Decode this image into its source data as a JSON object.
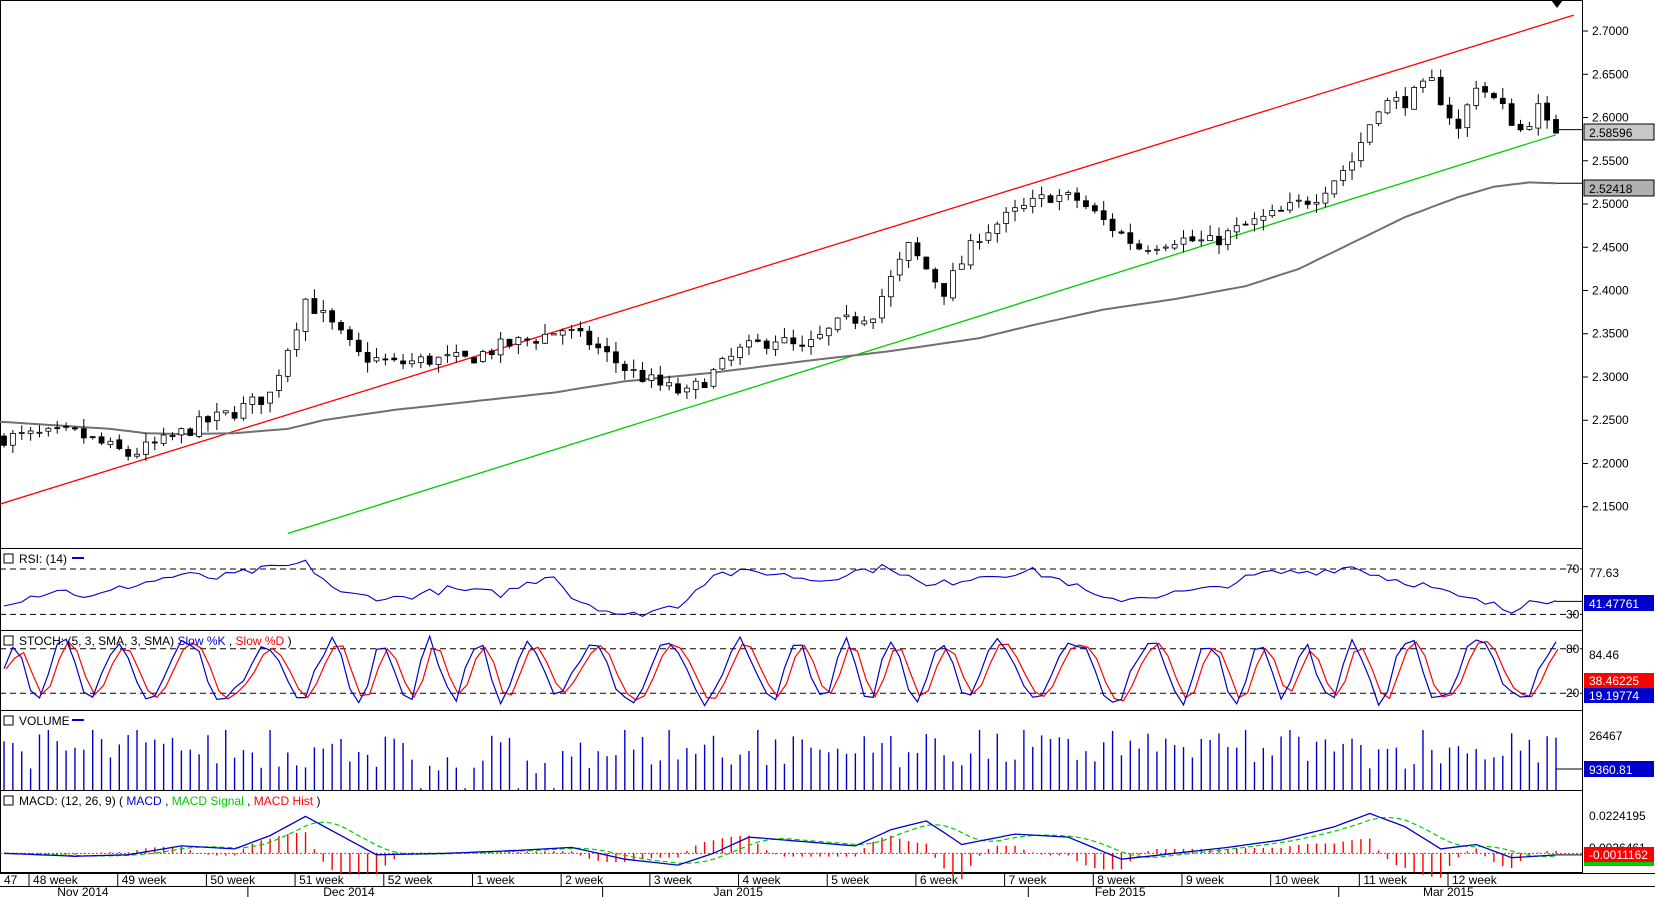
{
  "chart_data": {
    "type": "candlestick",
    "instrument_price_axis": {
      "ticks": [
        "2.7000",
        "2.6500",
        "2.6000",
        "2.5500",
        "2.5000",
        "2.4500",
        "2.4000",
        "2.3500",
        "2.3000",
        "2.2500",
        "2.2000",
        "2.1500"
      ],
      "ylim": [
        2.115,
        2.722
      ]
    },
    "price_tags": {
      "last_close": "2.58596",
      "moving_average": "2.52418"
    },
    "lines": {
      "upper_channel": {
        "color": "#ff0000",
        "from": [
          0,
          2.154
        ],
        "to": [
          175,
          2.712
        ]
      },
      "lower_channel": {
        "color": "#00cc00",
        "from": [
          32,
          2.119
        ],
        "to": [
          175,
          2.58
        ]
      },
      "moving_average": {
        "color": "#808080"
      }
    },
    "price_keypoints": [
      [
        0,
        2.23
      ],
      [
        8,
        2.235
      ],
      [
        14,
        2.21
      ],
      [
        18,
        2.225
      ],
      [
        22,
        2.245
      ],
      [
        26,
        2.26
      ],
      [
        30,
        2.28
      ],
      [
        34,
        2.39
      ],
      [
        36,
        2.37
      ],
      [
        40,
        2.325
      ],
      [
        44,
        2.315
      ],
      [
        48,
        2.32
      ],
      [
        52,
        2.32
      ],
      [
        56,
        2.335
      ],
      [
        60,
        2.345
      ],
      [
        63,
        2.355
      ],
      [
        66,
        2.34
      ],
      [
        70,
        2.31
      ],
      [
        74,
        2.29
      ],
      [
        77,
        2.28
      ],
      [
        80,
        2.305
      ],
      [
        83,
        2.33
      ],
      [
        87,
        2.345
      ],
      [
        90,
        2.33
      ],
      [
        94,
        2.36
      ],
      [
        98,
        2.375
      ],
      [
        102,
        2.45
      ],
      [
        106,
        2.4
      ],
      [
        110,
        2.465
      ],
      [
        114,
        2.49
      ],
      [
        118,
        2.51
      ],
      [
        121,
        2.505
      ],
      [
        124,
        2.48
      ],
      [
        128,
        2.45
      ],
      [
        132,
        2.46
      ],
      [
        136,
        2.455
      ],
      [
        140,
        2.475
      ],
      [
        144,
        2.49
      ],
      [
        148,
        2.51
      ],
      [
        152,
        2.55
      ],
      [
        155,
        2.615
      ],
      [
        158,
        2.62
      ],
      [
        161,
        2.64
      ],
      [
        164,
        2.585
      ],
      [
        166,
        2.64
      ],
      [
        169,
        2.61
      ],
      [
        171,
        2.585
      ],
      [
        173,
        2.61
      ],
      [
        174,
        2.59
      ],
      [
        175,
        2.586
      ]
    ],
    "ma_keypoints": [
      [
        0,
        2.248
      ],
      [
        12,
        2.24
      ],
      [
        16,
        2.235
      ],
      [
        20,
        2.234
      ],
      [
        26,
        2.235
      ],
      [
        32,
        2.24
      ],
      [
        36,
        2.25
      ],
      [
        44,
        2.262
      ],
      [
        54,
        2.273
      ],
      [
        62,
        2.282
      ],
      [
        70,
        2.295
      ],
      [
        80,
        2.305
      ],
      [
        90,
        2.318
      ],
      [
        100,
        2.33
      ],
      [
        110,
        2.345
      ],
      [
        116,
        2.36
      ],
      [
        124,
        2.378
      ],
      [
        132,
        2.39
      ],
      [
        140,
        2.405
      ],
      [
        146,
        2.425
      ],
      [
        152,
        2.455
      ],
      [
        158,
        2.485
      ],
      [
        164,
        2.508
      ],
      [
        168,
        2.52
      ],
      [
        172,
        2.525
      ],
      [
        175,
        2.524
      ]
    ],
    "time_axis": {
      "weeks": [
        {
          "label": "47",
          "bar": 0
        },
        {
          "label": "48 week",
          "bar": 3.5
        },
        {
          "label": "49 week",
          "bar": 13.5
        },
        {
          "label": "50 week",
          "bar": 23.5
        },
        {
          "label": "51 week",
          "bar": 33.5
        },
        {
          "label": "52 week",
          "bar": 43.5
        },
        {
          "label": "1 week",
          "bar": 53.5
        },
        {
          "label": "2 week",
          "bar": 63.5
        },
        {
          "label": "3 week",
          "bar": 73.5
        },
        {
          "label": "4 week",
          "bar": 83.5
        },
        {
          "label": "5 week",
          "bar": 93.5
        },
        {
          "label": "6 week",
          "bar": 103.5
        },
        {
          "label": "7 week",
          "bar": 113.5
        },
        {
          "label": "8 week",
          "bar": 123.5
        },
        {
          "label": "9 week",
          "bar": 133.5
        },
        {
          "label": "10 week",
          "bar": 143.5
        },
        {
          "label": "11 week",
          "bar": 153.5
        },
        {
          "label": "12 week",
          "bar": 163.5
        }
      ],
      "months": [
        {
          "label": "Nov 2014",
          "bar": 6
        },
        {
          "label": "Dec 2014",
          "bar": 36
        },
        {
          "label": "Jan 2015",
          "bar": 80
        },
        {
          "label": "Feb 2015",
          "bar": 123
        },
        {
          "label": "Mar 2015",
          "bar": 160
        }
      ]
    },
    "rsi": {
      "title": "RSI: (14)",
      "levels": [
        70,
        30
      ],
      "scale_label": "77.63",
      "last_value": "41.47761",
      "ylim": [
        18,
        85
      ],
      "keypoints": [
        [
          0,
          40
        ],
        [
          6,
          52
        ],
        [
          10,
          45
        ],
        [
          14,
          55
        ],
        [
          20,
          65
        ],
        [
          24,
          62
        ],
        [
          28,
          68
        ],
        [
          34,
          75
        ],
        [
          38,
          48
        ],
        [
          44,
          44
        ],
        [
          50,
          52
        ],
        [
          56,
          48
        ],
        [
          62,
          66
        ],
        [
          64,
          45
        ],
        [
          70,
          28
        ],
        [
          76,
          38
        ],
        [
          80,
          66
        ],
        [
          86,
          67
        ],
        [
          92,
          60
        ],
        [
          96,
          68
        ],
        [
          100,
          72
        ],
        [
          104,
          54
        ],
        [
          110,
          64
        ],
        [
          116,
          68
        ],
        [
          120,
          58
        ],
        [
          124,
          42
        ],
        [
          130,
          47
        ],
        [
          136,
          52
        ],
        [
          142,
          66
        ],
        [
          148,
          68
        ],
        [
          152,
          72
        ],
        [
          156,
          62
        ],
        [
          160,
          56
        ],
        [
          164,
          45
        ],
        [
          168,
          38
        ],
        [
          170,
          32
        ],
        [
          172,
          45
        ],
        [
          175,
          41.5
        ]
      ]
    },
    "stoch": {
      "title": "STOCH: (5, 3, SMA, 3, SMA)",
      "slow_k_label": "Slow %K",
      "slow_d_label": "Slow %D",
      "levels": [
        80,
        20
      ],
      "scale_label": "84.46",
      "slow_d_value": "38.46225",
      "slow_k_value": "19.19774"
    },
    "volume": {
      "title": "VOLUME",
      "scale_label": "26467",
      "last_value": "9360.81"
    },
    "macd": {
      "title": "MACD: (12, 26, 9)",
      "macd_label": "MACD",
      "signal_label": "MACD Signal",
      "hist_label": "MACD Hist",
      "scale_top": "0.0224195",
      "scale_mid": "0.0036461",
      "last_value": "-0.0011162",
      "ylim": [
        -0.012,
        0.028
      ],
      "keypoints": [
        [
          0,
          0.0
        ],
        [
          8,
          -0.002
        ],
        [
          14,
          -0.001
        ],
        [
          20,
          0.005
        ],
        [
          26,
          0.003
        ],
        [
          30,
          0.012
        ],
        [
          34,
          0.025
        ],
        [
          38,
          0.012
        ],
        [
          42,
          -0.001
        ],
        [
          50,
          0.0
        ],
        [
          58,
          0.002
        ],
        [
          64,
          0.004
        ],
        [
          70,
          -0.004
        ],
        [
          76,
          -0.008
        ],
        [
          80,
          0.0
        ],
        [
          84,
          0.011
        ],
        [
          90,
          0.008
        ],
        [
          96,
          0.005
        ],
        [
          100,
          0.016
        ],
        [
          104,
          0.022
        ],
        [
          108,
          0.006
        ],
        [
          114,
          0.013
        ],
        [
          120,
          0.011
        ],
        [
          126,
          -0.004
        ],
        [
          132,
          0.0
        ],
        [
          138,
          0.004
        ],
        [
          144,
          0.009
        ],
        [
          150,
          0.018
        ],
        [
          154,
          0.027
        ],
        [
          158,
          0.018
        ],
        [
          162,
          0.003
        ],
        [
          166,
          0.006
        ],
        [
          170,
          -0.003
        ],
        [
          175,
          -0.0011
        ]
      ]
    },
    "colors": {
      "bull": "#ffffff",
      "bear": "#000000",
      "blue": "#0000cc",
      "red": "#ff0000",
      "green": "#00cc00",
      "grid": "#000000",
      "tag_gray": "#c8c8c8",
      "tag_blue": "#0000cc",
      "tag_red": "#ff0000"
    }
  }
}
